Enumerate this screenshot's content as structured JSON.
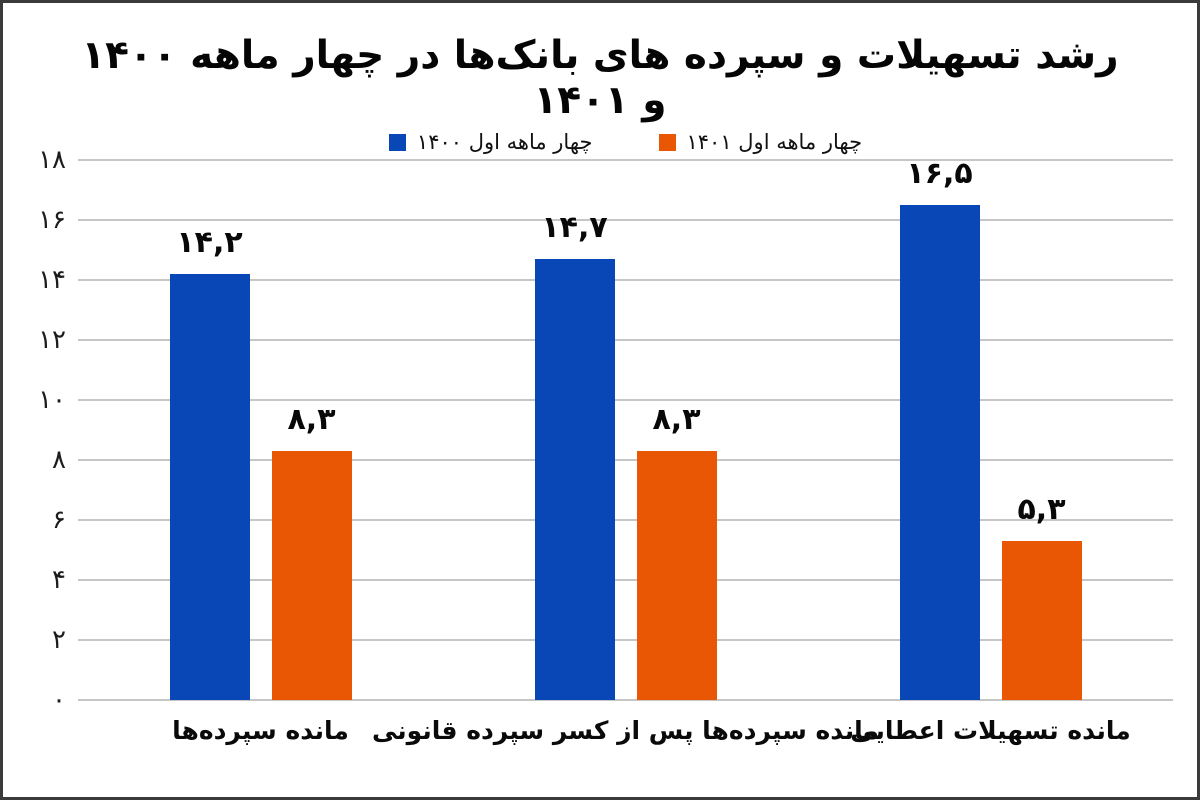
{
  "title": "رشد تسهیلات و سپرده های بانک‌ها در چهار ماهه ۱۴۰۰ و ۱۴۰۱",
  "colors": {
    "series_1400_blue": "#0946B6",
    "series_1401_orange": "#E95604",
    "gridline": "#c6c6c6",
    "frame_border": "#3a3a3a",
    "background": "#ffffff",
    "text": "#050505"
  },
  "chart_data": {
    "type": "bar",
    "title": "رشد تسهیلات و سپرده های بانک‌ها در چهار ماهه ۱۴۰۰ و ۱۴۰۱",
    "rtl": true,
    "grid": true,
    "legend_position": "top",
    "xlabel": "",
    "ylabel": "",
    "ylim": [
      0,
      18
    ],
    "ytick_step": 2,
    "yticks": [
      {
        "value": 18,
        "label": "۱۸"
      },
      {
        "value": 16,
        "label": "۱۶"
      },
      {
        "value": 14,
        "label": "۱۴"
      },
      {
        "value": 12,
        "label": "۱۲"
      },
      {
        "value": 10,
        "label": "۱۰"
      },
      {
        "value": 8,
        "label": "۸"
      },
      {
        "value": 6,
        "label": "۶"
      },
      {
        "value": 4,
        "label": "۴"
      },
      {
        "value": 2,
        "label": "۲"
      },
      {
        "value": 0,
        "label": "۰"
      }
    ],
    "categories": [
      "مانده سپرده‌ها",
      "مانده سپرده‌ها پس از کسر سپرده قانونی",
      "مانده تسهیلات اعطایی"
    ],
    "series": [
      {
        "name": "چهار ماهه اول ۱۴۰۰",
        "color": "#0946B6",
        "values": [
          14.2,
          14.7,
          16.5
        ],
        "value_labels": [
          "۱۴,۲",
          "۱۴,۷",
          "۱۶,۵"
        ]
      },
      {
        "name": "چهار ماهه اول ۱۴۰۱",
        "color": "#E95604",
        "values": [
          8.3,
          8.3,
          5.3
        ],
        "value_labels": [
          "۸,۳",
          "۸,۳",
          "۵,۳"
        ]
      }
    ]
  }
}
